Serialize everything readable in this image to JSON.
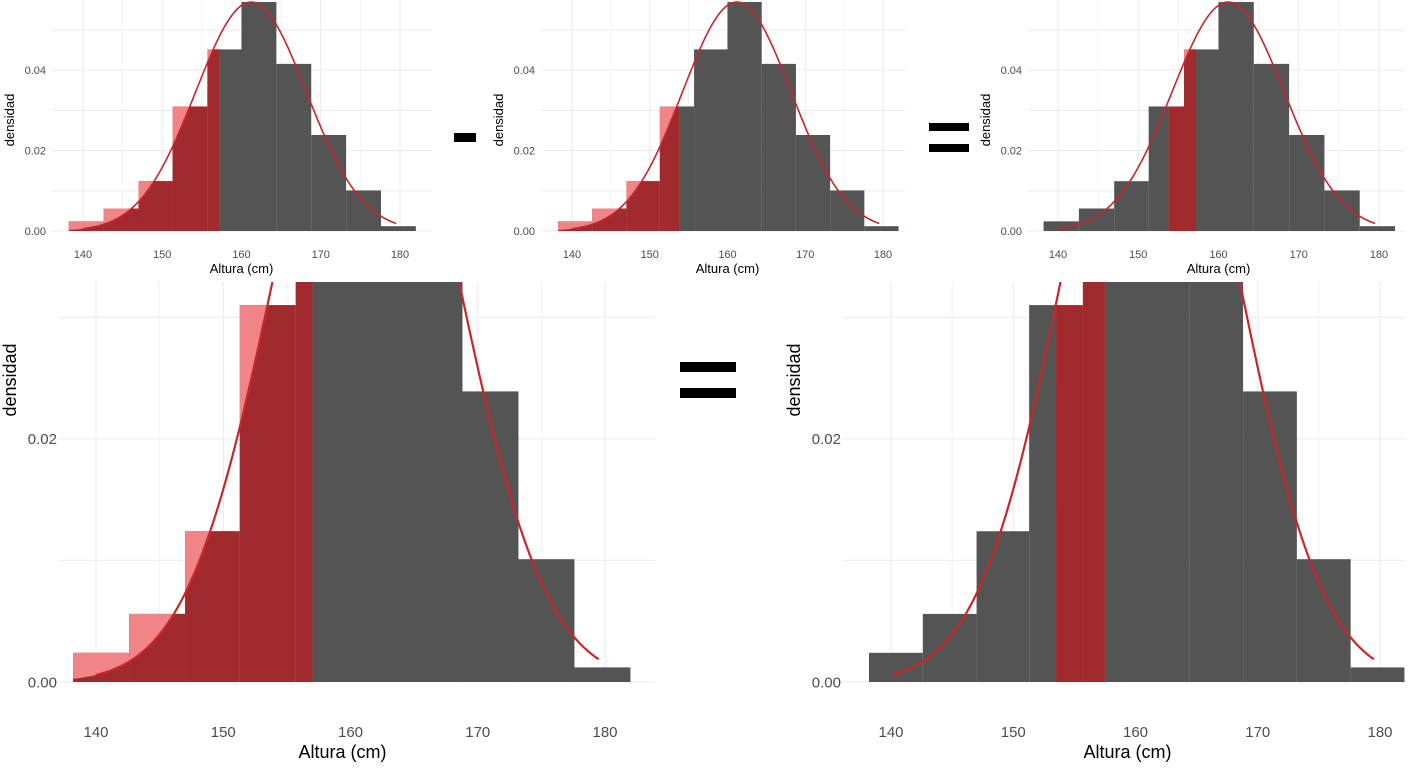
{
  "chart_data": {
    "type": "bar",
    "xlabel": "Altura (cm)",
    "ylabel": "densidad",
    "x_ticks": [
      140,
      150,
      160,
      170,
      180
    ],
    "bin_edges": [
      138.2,
      142.6,
      147.0,
      151.3,
      155.7,
      160.0,
      164.4,
      168.8,
      173.2,
      177.6,
      182.0
    ],
    "densities": [
      0.0024,
      0.0056,
      0.0124,
      0.031,
      0.0452,
      0.057,
      0.0416,
      0.0239,
      0.0101,
      0.0012
    ],
    "density_curve": {
      "type": "normal",
      "mean": 161.2,
      "sd": 7.0,
      "x_range": [
        140,
        179.5
      ]
    },
    "colors": {
      "bar": "#545454",
      "shade_dark": "#a12a2f",
      "shade_light": "#f08486",
      "curve": "#c8262b",
      "grid": "#ebebeb"
    },
    "panels": [
      {
        "id": "top-left",
        "y_ticks": [
          0.0,
          0.02,
          0.04
        ],
        "y_tick_labels": [
          "0.00",
          "0.02",
          "0.04"
        ],
        "ylim": [
          0,
          0.0575
        ],
        "shade_from": 138.2,
        "shade_to": 157.2
      },
      {
        "id": "top-middle",
        "y_ticks": [
          0.0,
          0.02,
          0.04
        ],
        "y_tick_labels": [
          "0.00",
          "0.02",
          "0.04"
        ],
        "ylim": [
          0,
          0.0575
        ],
        "shade_from": 138.2,
        "shade_to": 153.8
      },
      {
        "id": "top-right",
        "y_ticks": [
          0.0,
          0.02,
          0.04
        ],
        "y_tick_labels": [
          "0.00",
          "0.02",
          "0.04"
        ],
        "ylim": [
          0,
          0.0575
        ],
        "shade_from": 153.8,
        "shade_to": 157.2
      },
      {
        "id": "bottom-left",
        "y_ticks": [
          0.0,
          0.02
        ],
        "y_tick_labels": [
          "0.00",
          "0.02"
        ],
        "ylim": [
          0,
          0.0329
        ],
        "shade_from": 138.2,
        "shade_to": 157.0
      },
      {
        "id": "bottom-right",
        "y_ticks": [
          0.0,
          0.02
        ],
        "y_tick_labels": [
          "0.00",
          "0.02"
        ],
        "ylim": [
          0,
          0.0329
        ],
        "shade_from": 153.5,
        "shade_to": 157.5
      }
    ],
    "operators": [
      "-",
      "=",
      "="
    ]
  }
}
